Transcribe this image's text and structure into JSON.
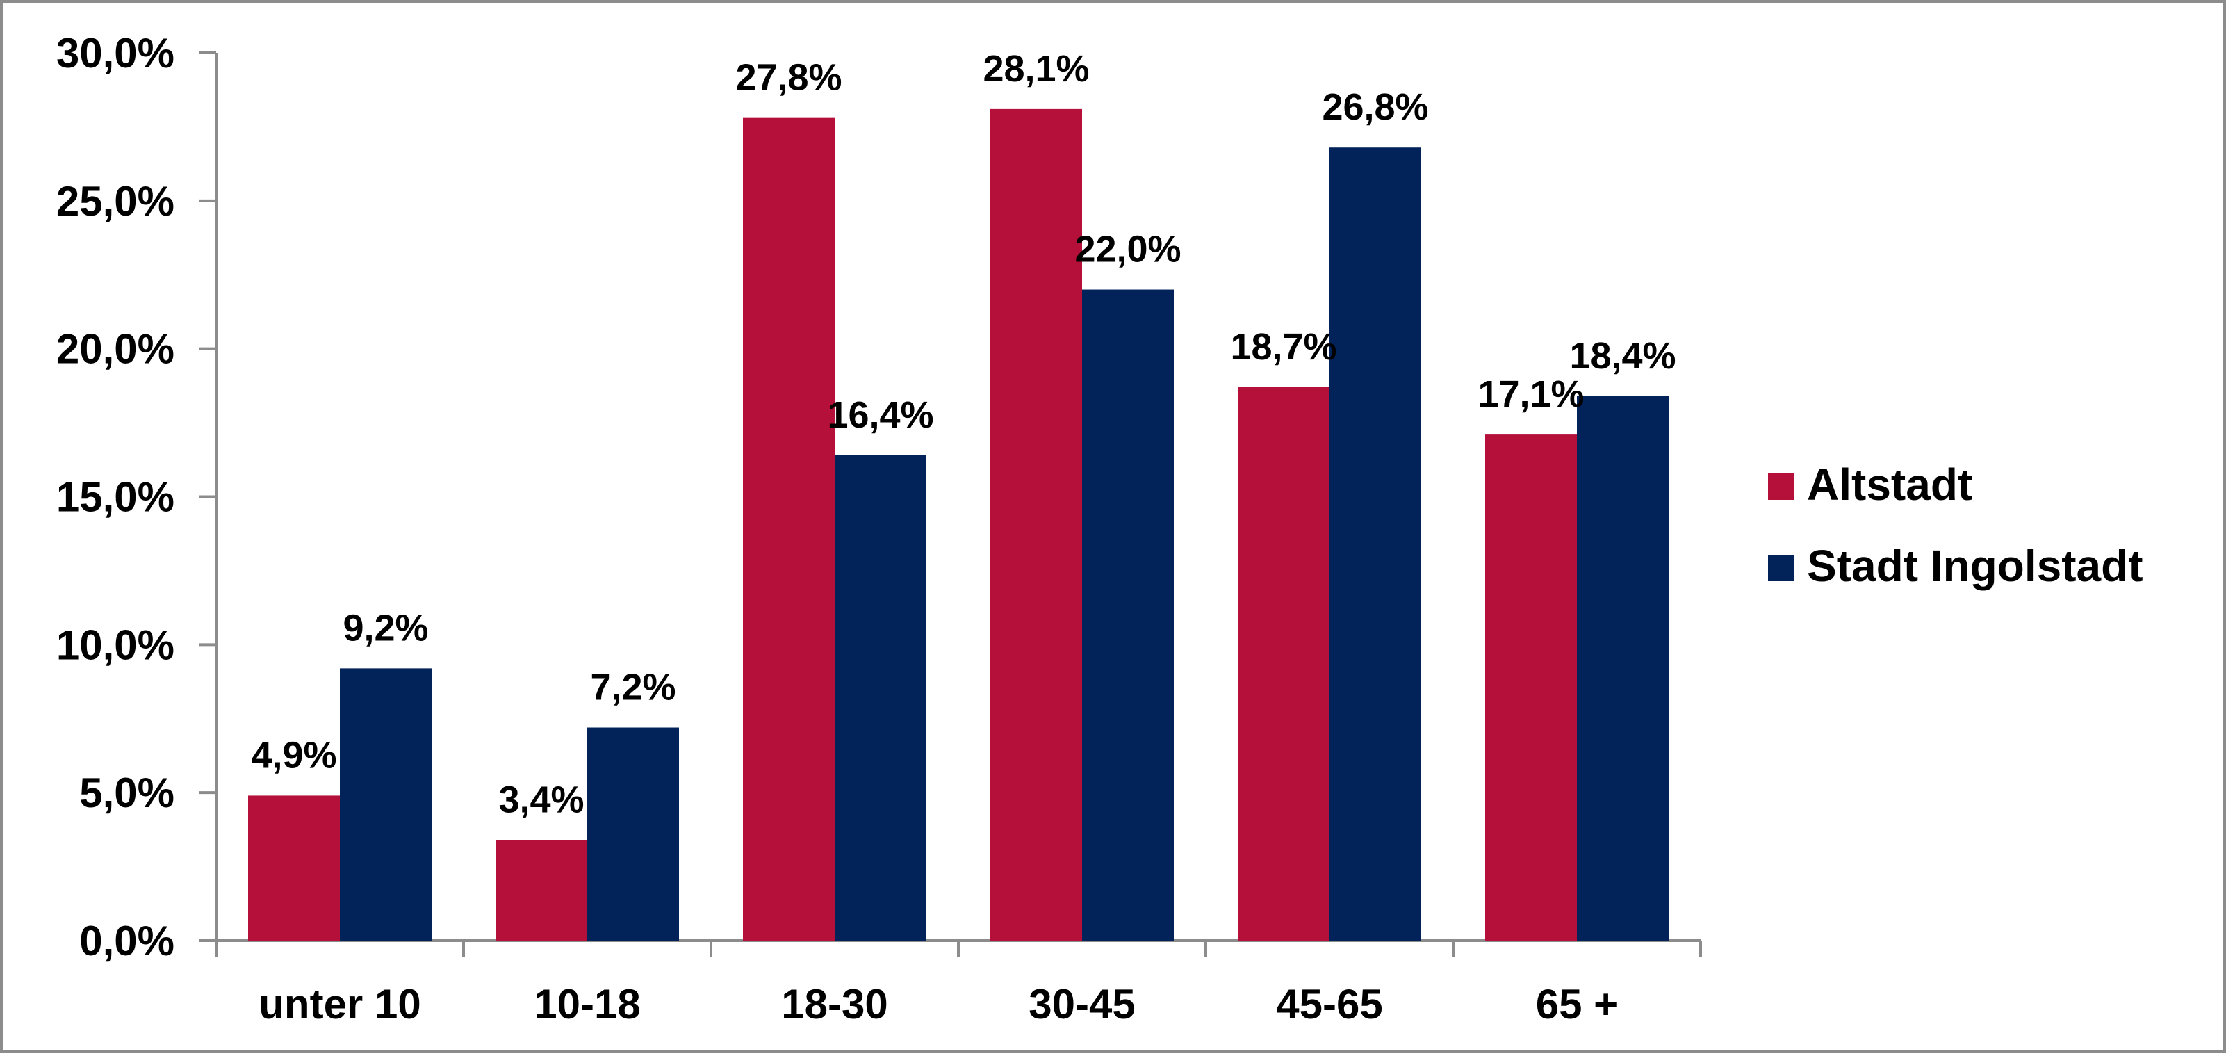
{
  "chart_data": {
    "type": "bar",
    "title": "",
    "xlabel": "",
    "ylabel": "",
    "categories": [
      "unter 10",
      "10-18",
      "18-30",
      "30-45",
      "45-65",
      "65 +"
    ],
    "series": [
      {
        "name": "Altstadt",
        "color": "#b5103a",
        "values": [
          4.9,
          3.4,
          27.8,
          28.1,
          18.7,
          17.1
        ],
        "labels": [
          "4,9%",
          "3,4%",
          "27,8%",
          "28,1%",
          "18,7%",
          "17,1%"
        ]
      },
      {
        "name": "Stadt Ingolstadt",
        "color": "#02235a",
        "values": [
          9.2,
          7.2,
          16.4,
          22.0,
          26.8,
          18.4
        ],
        "labels": [
          "9,2%",
          "7,2%",
          "16,4%",
          "22,0%",
          "26,8%",
          "18,4%"
        ]
      }
    ],
    "ylim": [
      0,
      30
    ],
    "yticks": [
      0,
      5,
      10,
      15,
      20,
      25,
      30
    ],
    "ytick_labels": [
      "0,0%",
      "5,0%",
      "10,0%",
      "15,0%",
      "20,0%",
      "25,0%",
      "30,0%"
    ],
    "grid": false,
    "legend_position": "right",
    "axis_color": "#8c8c8c"
  }
}
